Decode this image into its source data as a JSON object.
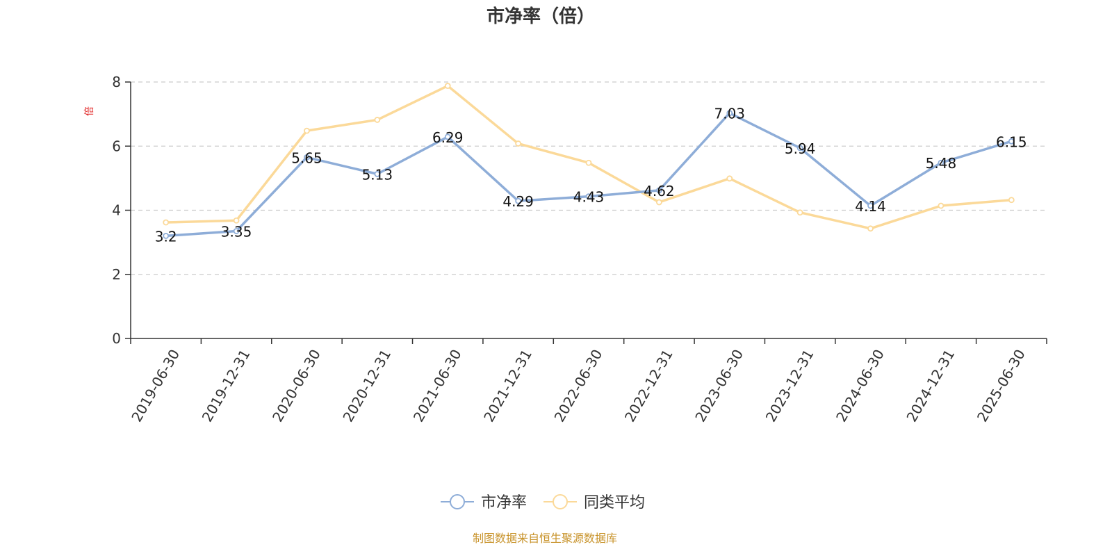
{
  "chart_data": {
    "type": "line",
    "title": "市净率（倍）",
    "ylabel": "倍",
    "xlabel": "",
    "ylim": [
      0,
      8
    ],
    "yticks": [
      0,
      2,
      4,
      6,
      8
    ],
    "grid": true,
    "legend_position": "bottom-center",
    "categories": [
      "2019-06-30",
      "2019-12-31",
      "2020-06-30",
      "2020-12-31",
      "2021-06-30",
      "2021-12-31",
      "2022-06-30",
      "2022-12-31",
      "2023-06-30",
      "2023-12-31",
      "2024-06-30",
      "2024-12-31",
      "2025-06-30"
    ],
    "series": [
      {
        "name": "市净率",
        "color": "#8eadd8",
        "values": [
          3.2,
          3.35,
          5.65,
          5.13,
          6.29,
          4.29,
          4.43,
          4.62,
          7.03,
          5.94,
          4.14,
          5.48,
          6.15
        ],
        "labels": [
          "3.2",
          "3.35",
          "5.65",
          "5.13",
          "6.29",
          "4.29",
          "4.43",
          "4.62",
          "7.03",
          "5.94",
          "4.14",
          "5.48",
          "6.15"
        ]
      },
      {
        "name": "同类平均",
        "color": "#fbd999",
        "values": [
          3.62,
          3.68,
          6.48,
          6.82,
          7.88,
          6.08,
          5.48,
          4.25,
          4.99,
          3.93,
          3.43,
          4.14,
          4.32
        ]
      }
    ],
    "source": "制图数据来自恒生聚源数据库"
  }
}
